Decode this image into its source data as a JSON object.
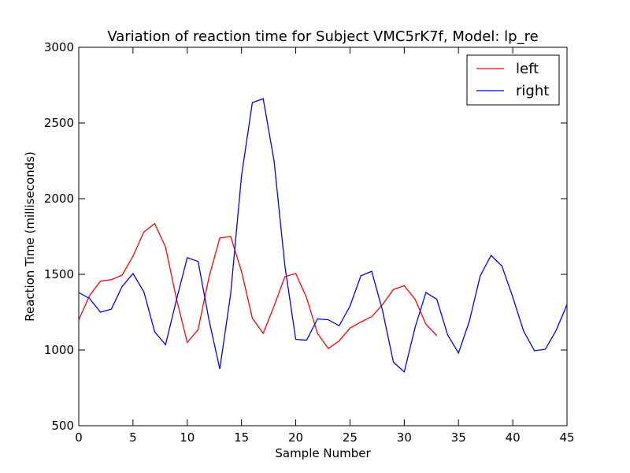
{
  "chart_data": {
    "type": "line",
    "title": "Variation of reaction time for Subject VMC5rK7f, Model: lp_re",
    "xlabel": "Sample Number",
    "ylabel": "Reaction Time (milliseconds)",
    "xlim": [
      0,
      45
    ],
    "ylim": [
      500,
      3000
    ],
    "xticks": [
      "0",
      "5",
      "10",
      "15",
      "20",
      "25",
      "30",
      "35",
      "40",
      "45"
    ],
    "yticks": [
      "500",
      "1000",
      "1500",
      "2000",
      "2500",
      "3000"
    ],
    "grid": false,
    "legend_position": "top-right",
    "series": [
      {
        "name": "left",
        "color": "#ff0000",
        "x": [
          0,
          1,
          2,
          3,
          4,
          5,
          6,
          7,
          8,
          9,
          10,
          11,
          12,
          13,
          14,
          15,
          16,
          17,
          18,
          19,
          20,
          21,
          22,
          23,
          24,
          25,
          26,
          27,
          28,
          29,
          30,
          31,
          32,
          33
        ],
        "values": [
          1200,
          1360,
          1455,
          1465,
          1495,
          1620,
          1780,
          1835,
          1680,
          1340,
          1050,
          1135,
          1480,
          1740,
          1750,
          1520,
          1210,
          1110,
          1290,
          1485,
          1505,
          1345,
          1110,
          1010,
          1060,
          1145,
          1185,
          1220,
          1300,
          1400,
          1425,
          1335,
          1170,
          1095
        ]
      },
      {
        "name": "right",
        "color": "#0000ff",
        "x": [
          0,
          1,
          2,
          3,
          4,
          5,
          6,
          7,
          8,
          9,
          10,
          11,
          12,
          13,
          14,
          15,
          16,
          17,
          18,
          19,
          20,
          21,
          22,
          23,
          24,
          25,
          26,
          27,
          28,
          29,
          30,
          31,
          32,
          33,
          34,
          35,
          36,
          37,
          38,
          39,
          40,
          41,
          42,
          43,
          44,
          45
        ],
        "values": [
          1380,
          1340,
          1250,
          1270,
          1420,
          1505,
          1385,
          1120,
          1035,
          1330,
          1610,
          1585,
          1200,
          875,
          1370,
          2150,
          2635,
          2660,
          2250,
          1555,
          1070,
          1065,
          1205,
          1200,
          1160,
          1290,
          1490,
          1520,
          1260,
          920,
          855,
          1150,
          1380,
          1335,
          1100,
          980,
          1190,
          1490,
          1625,
          1555,
          1350,
          1125,
          995,
          1005,
          1130,
          1300
        ]
      }
    ]
  }
}
